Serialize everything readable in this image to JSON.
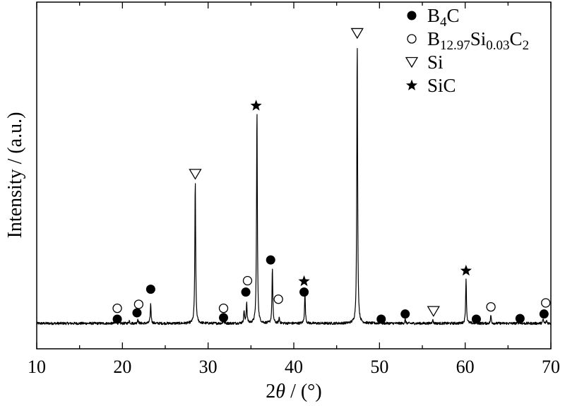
{
  "chart_data": {
    "type": "line",
    "title": "",
    "xlabel": {
      "prefix": "2",
      "var": "θ",
      "suffix": " / (°)"
    },
    "ylabel": "Intensity / (a.u.)",
    "xlim": [
      10,
      70
    ],
    "ylim": [
      0,
      100
    ],
    "xticks": [
      10,
      20,
      30,
      40,
      50,
      60,
      70
    ],
    "xtick_labels": [
      "10",
      "20",
      "30",
      "40",
      "50",
      "60",
      "70"
    ],
    "yticks_shown": false,
    "grid": false,
    "legend_position": "top-right",
    "series": [
      {
        "peaks": [
          {
            "x": 19.3,
            "h": 0.6
          },
          {
            "x": 20.8,
            "h": 1.0
          },
          {
            "x": 21.8,
            "h": 1.6
          },
          {
            "x": 23.3,
            "h": 7.0
          },
          {
            "x": 28.5,
            "h": 50.5
          },
          {
            "x": 31.8,
            "h": 1.2
          },
          {
            "x": 34.2,
            "h": 4.5
          },
          {
            "x": 34.5,
            "h": 7.5
          },
          {
            "x": 35.7,
            "h": 75.5
          },
          {
            "x": 37.5,
            "h": 19.5
          },
          {
            "x": 38.3,
            "h": 2.0
          },
          {
            "x": 41.3,
            "h": 11.0
          },
          {
            "x": 47.4,
            "h": 99.5
          },
          {
            "x": 50.1,
            "h": 0.6
          },
          {
            "x": 53.0,
            "h": 1.4
          },
          {
            "x": 56.2,
            "h": 1.4
          },
          {
            "x": 60.1,
            "h": 16.0
          },
          {
            "x": 61.3,
            "h": 0.6
          },
          {
            "x": 63.0,
            "h": 2.8
          },
          {
            "x": 66.3,
            "h": 0.8
          },
          {
            "x": 69.1,
            "h": 1.6
          },
          {
            "x": 69.5,
            "h": 1.0
          }
        ],
        "baseline": 0.5,
        "noise": 0.9
      }
    ],
    "phase_markers": [
      {
        "phase": "B4C",
        "symbol": "filled-circle",
        "x": 19.4,
        "y": 2.0
      },
      {
        "phase": "B4C",
        "symbol": "filled-circle",
        "x": 21.7,
        "y": 4.2
      },
      {
        "phase": "B4C",
        "symbol": "filled-circle",
        "x": 23.3,
        "y": 12.5
      },
      {
        "phase": "B4C",
        "symbol": "filled-circle",
        "x": 31.8,
        "y": 2.5
      },
      {
        "phase": "B4C",
        "symbol": "filled-circle",
        "x": 34.4,
        "y": 11.5
      },
      {
        "phase": "B4C",
        "symbol": "filled-circle",
        "x": 37.3,
        "y": 22.8
      },
      {
        "phase": "B4C",
        "symbol": "filled-circle",
        "x": 41.2,
        "y": 11.5
      },
      {
        "phase": "B4C",
        "symbol": "filled-circle",
        "x": 50.2,
        "y": 2.0
      },
      {
        "phase": "B4C",
        "symbol": "filled-circle",
        "x": 53.0,
        "y": 3.8
      },
      {
        "phase": "B4C",
        "symbol": "filled-circle",
        "x": 61.3,
        "y": 2.0
      },
      {
        "phase": "B4C",
        "symbol": "filled-circle",
        "x": 66.4,
        "y": 2.2
      },
      {
        "phase": "B4C",
        "symbol": "filled-circle",
        "x": 69.2,
        "y": 3.8
      },
      {
        "phase": "B12.97Si0.03C2",
        "symbol": "open-circle",
        "x": 19.4,
        "y": 5.8
      },
      {
        "phase": "B12.97Si0.03C2",
        "symbol": "open-circle",
        "x": 21.9,
        "y": 7.2
      },
      {
        "phase": "B12.97Si0.03C2",
        "symbol": "open-circle",
        "x": 31.8,
        "y": 5.8
      },
      {
        "phase": "B12.97Si0.03C2",
        "symbol": "open-circle",
        "x": 34.6,
        "y": 15.5
      },
      {
        "phase": "B12.97Si0.03C2",
        "symbol": "open-circle",
        "x": 38.2,
        "y": 9.0
      },
      {
        "phase": "B12.97Si0.03C2",
        "symbol": "open-circle",
        "x": 63.0,
        "y": 6.3
      },
      {
        "phase": "B12.97Si0.03C2",
        "symbol": "open-circle",
        "x": 69.4,
        "y": 7.7
      },
      {
        "phase": "Si",
        "symbol": "open-triangle-down",
        "x": 28.5,
        "y": 53.0
      },
      {
        "phase": "Si",
        "symbol": "open-triangle-down",
        "x": 47.4,
        "y": 102.5
      },
      {
        "phase": "Si",
        "symbol": "open-triangle-down",
        "x": 56.3,
        "y": 4.8
      },
      {
        "phase": "SiC",
        "symbol": "star",
        "x": 35.6,
        "y": 77.0
      },
      {
        "phase": "SiC",
        "symbol": "star",
        "x": 41.2,
        "y": 15.3
      },
      {
        "phase": "SiC",
        "symbol": "star",
        "x": 60.1,
        "y": 19.0
      }
    ]
  },
  "legend": {
    "entries": [
      {
        "symbol": "filled-circle",
        "parts": [
          {
            "t": "B",
            "sub": false
          },
          {
            "t": "4",
            "sub": true
          },
          {
            "t": "C",
            "sub": false
          }
        ]
      },
      {
        "symbol": "open-circle",
        "parts": [
          {
            "t": "B",
            "sub": false
          },
          {
            "t": "12.97",
            "sub": true
          },
          {
            "t": "Si",
            "sub": false
          },
          {
            "t": "0.03",
            "sub": true
          },
          {
            "t": "C",
            "sub": false
          },
          {
            "t": "2",
            "sub": true
          }
        ]
      },
      {
        "symbol": "open-triangle-down",
        "parts": [
          {
            "t": "Si",
            "sub": false
          }
        ]
      },
      {
        "symbol": "star",
        "parts": [
          {
            "t": "SiC",
            "sub": false
          }
        ]
      }
    ]
  },
  "colors": {
    "line": "#000000",
    "axis": "#000000",
    "background": "#ffffff"
  }
}
